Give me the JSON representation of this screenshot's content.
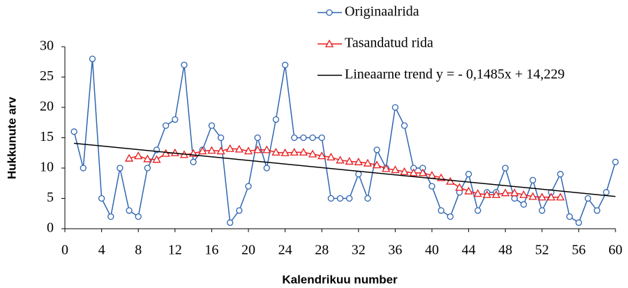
{
  "chart_data": {
    "type": "line",
    "x_label": "Kalendrikuu number",
    "y_label": "Hukkunute arv",
    "x": [
      1,
      2,
      3,
      4,
      5,
      6,
      7,
      8,
      9,
      10,
      11,
      12,
      13,
      14,
      15,
      16,
      17,
      18,
      19,
      20,
      21,
      22,
      23,
      24,
      25,
      26,
      27,
      28,
      29,
      30,
      31,
      32,
      33,
      34,
      35,
      36,
      37,
      38,
      39,
      40,
      41,
      42,
      43,
      44,
      45,
      46,
      47,
      48,
      49,
      50,
      51,
      52,
      53,
      54,
      55,
      56,
      57,
      58,
      59,
      60
    ],
    "series": [
      {
        "name": "Originaalrida",
        "color": "#2f66b0",
        "marker": "circle",
        "values": [
          16,
          10,
          28,
          5,
          2,
          10,
          3,
          2,
          10,
          13,
          17,
          18,
          27,
          11,
          13,
          17,
          15,
          1,
          3,
          7,
          15,
          10,
          18,
          27,
          15,
          15,
          15,
          15,
          5,
          5,
          5,
          9,
          5,
          13,
          10,
          20,
          17,
          10,
          10,
          7,
          3,
          2,
          6,
          9,
          3,
          6,
          6,
          10,
          5,
          4,
          8,
          3,
          6,
          9,
          2,
          1,
          5,
          3,
          6,
          11
        ]
      },
      {
        "name": "Tasandatud rida",
        "color": "#e8191b",
        "marker": "triangle",
        "values": [
          null,
          null,
          null,
          null,
          null,
          null,
          11.6,
          12.0,
          11.5,
          11.4,
          12.4,
          12.5,
          12.2,
          12.4,
          12.8,
          12.9,
          12.8,
          13.2,
          13.1,
          12.8,
          13.0,
          13.0,
          12.6,
          12.5,
          12.6,
          12.6,
          12.3,
          12.0,
          11.8,
          11.3,
          11.1,
          11.0,
          10.8,
          10.5,
          9.9,
          9.7,
          9.4,
          9.2,
          9.2,
          8.8,
          8.4,
          7.8,
          6.8,
          6.2,
          5.8,
          5.6,
          5.6,
          5.9,
          5.9,
          5.6,
          5.3,
          5.2,
          5.2,
          5.2,
          null,
          null,
          null,
          null,
          null,
          null
        ]
      },
      {
        "name": "Lineaarne trend y = - 0,1485x + 14,229",
        "color": "#000000",
        "marker": "none",
        "x": [
          1,
          60
        ],
        "values": [
          14.08,
          5.32
        ]
      }
    ],
    "xlim": [
      0,
      60
    ],
    "xticks": [
      0,
      4,
      8,
      12,
      16,
      20,
      24,
      28,
      32,
      36,
      40,
      44,
      48,
      52,
      56,
      60
    ],
    "ylim": [
      0,
      30
    ],
    "yticks": [
      0,
      5,
      10,
      15,
      20,
      25,
      30
    ],
    "grid": false,
    "legend": "top-right"
  }
}
